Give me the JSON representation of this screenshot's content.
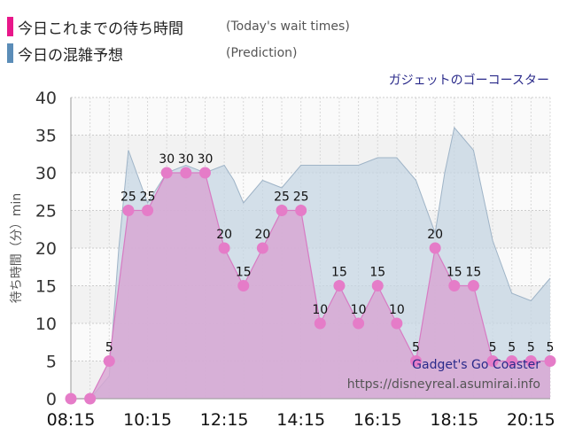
{
  "legend": {
    "today": {
      "label": "今日これまでの待ち時間",
      "en": "(Today's wait times)",
      "color": "#e8178a"
    },
    "prediction": {
      "label": "今日の混雑予想",
      "en": "(Prediction)",
      "color": "#5b8db8"
    }
  },
  "chart_data": {
    "type": "area",
    "title": "ガジェットのゴーコースター",
    "ylabel": "待ち時間（分）min",
    "xlabel": "",
    "ylim": [
      0,
      40
    ],
    "yticks": [
      0,
      5,
      10,
      15,
      20,
      25,
      30,
      35,
      40
    ],
    "xticks": [
      "08:15",
      "10:15",
      "12:15",
      "14:15",
      "16:15",
      "18:15",
      "20:15"
    ],
    "grid": true,
    "legend_position": "top-left",
    "series": [
      {
        "name": "今日これまでの待ち時間",
        "color": "#e060b0",
        "times": [
          "08:15",
          "08:45",
          "09:15",
          "09:45",
          "10:15",
          "10:45",
          "11:15",
          "11:45",
          "12:15",
          "12:45",
          "13:15",
          "13:45",
          "14:15",
          "14:45",
          "15:15",
          "15:45",
          "16:15",
          "16:45",
          "17:15",
          "17:45",
          "18:15",
          "18:45",
          "19:15",
          "19:45",
          "20:15",
          "20:45"
        ],
        "values": [
          0,
          0,
          5,
          25,
          25,
          30,
          30,
          30,
          20,
          15,
          20,
          25,
          25,
          10,
          15,
          10,
          15,
          10,
          5,
          20,
          15,
          15,
          5,
          5,
          5,
          5
        ]
      },
      {
        "name": "今日の混雑予想",
        "color": "#a9c1d6",
        "times": [
          "08:15",
          "08:45",
          "09:15",
          "09:30",
          "09:45",
          "10:15",
          "10:45",
          "11:15",
          "11:45",
          "12:15",
          "12:30",
          "12:45",
          "13:15",
          "13:45",
          "14:15",
          "14:45",
          "15:15",
          "15:45",
          "16:15",
          "16:45",
          "17:15",
          "17:45",
          "18:00",
          "18:15",
          "18:45",
          "19:15",
          "19:45",
          "20:15",
          "20:45"
        ],
        "values": [
          0,
          0,
          3,
          20,
          33,
          26,
          30,
          31,
          30,
          31,
          29,
          26,
          29,
          28,
          31,
          31,
          31,
          31,
          32,
          32,
          29,
          22,
          30,
          36,
          33,
          21,
          14,
          13,
          16
        ]
      }
    ]
  },
  "watermark": {
    "name": "Gadget's Go Coaster",
    "url": "https://disneyreal.asumirai.info"
  }
}
